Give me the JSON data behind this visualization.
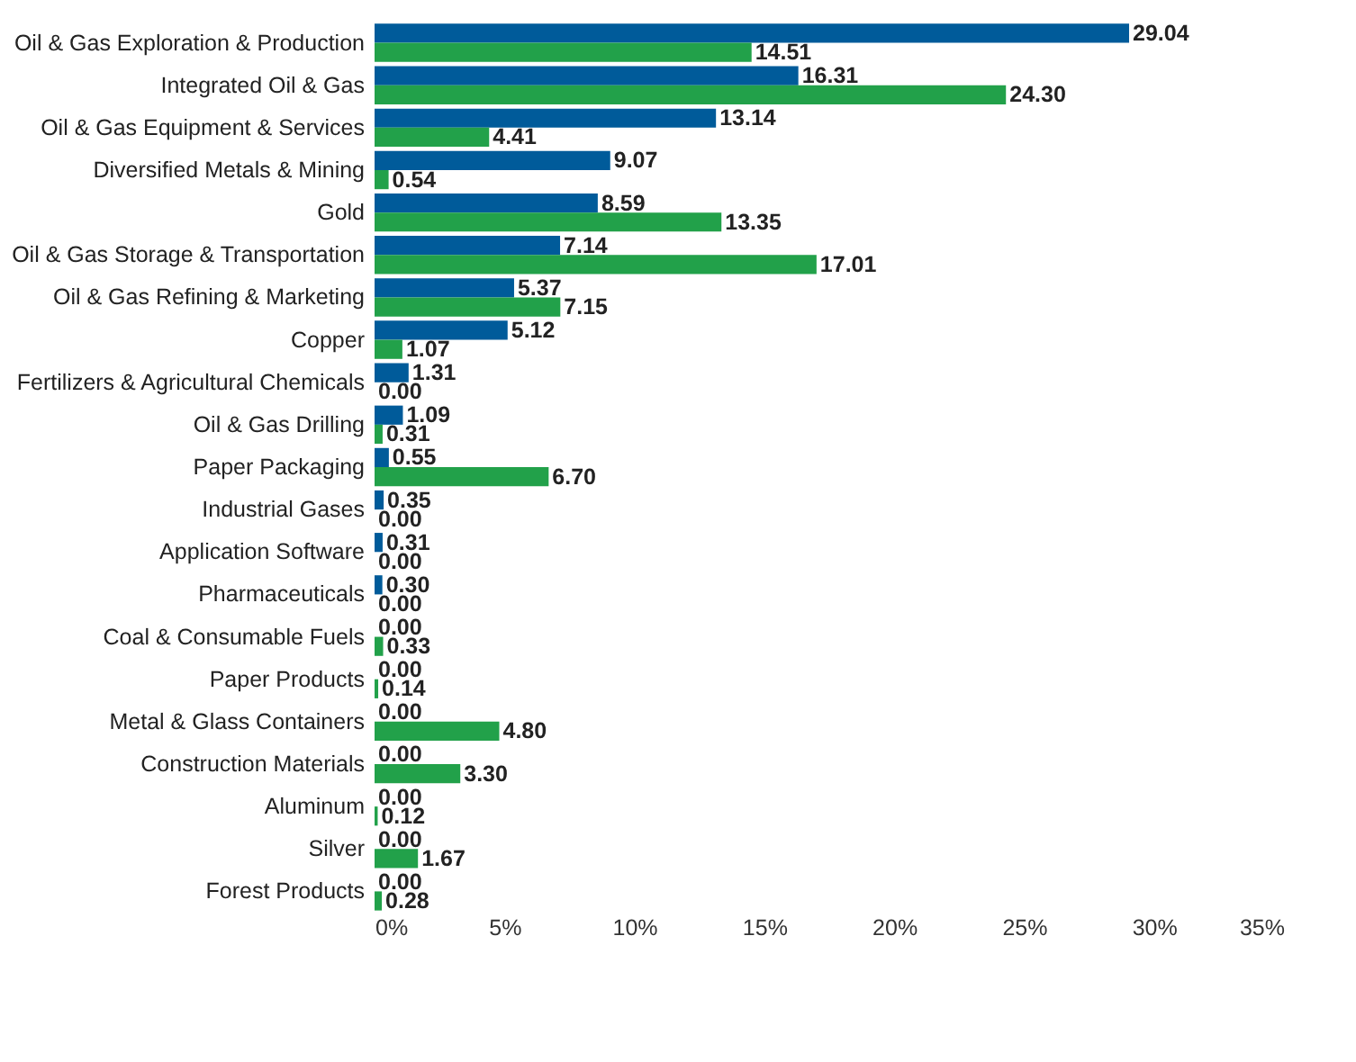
{
  "chart_data": {
    "type": "bar",
    "orientation": "horizontal",
    "categories": [
      "Oil & Gas Exploration & Production",
      "Integrated Oil & Gas",
      "Oil & Gas Equipment & Services",
      "Diversified Metals & Mining",
      "Gold",
      "Oil & Gas Storage & Transportation",
      "Oil & Gas Refining & Marketing",
      "Copper",
      "Fertilizers & Agricultural Chemicals",
      "Oil & Gas Drilling",
      "Paper Packaging",
      "Industrial Gases",
      "Application Software",
      "Pharmaceuticals",
      "Coal & Consumable Fuels",
      "Paper Products",
      "Metal & Glass Containers",
      "Construction Materials",
      "Aluminum",
      "Silver",
      "Forest Products"
    ],
    "series": [
      {
        "color": "#005b9a",
        "values": [
          29.04,
          16.31,
          13.14,
          9.07,
          8.59,
          7.14,
          5.37,
          5.12,
          1.31,
          1.09,
          0.55,
          0.35,
          0.31,
          0.3,
          0,
          0,
          0,
          0,
          0,
          0,
          0
        ],
        "value_labels": [
          "29.04",
          "16.31",
          "13.14",
          "9.07",
          "8.59",
          "7.14",
          "5.37",
          "5.12",
          "1.31",
          "1.09",
          "0.55",
          "0.35",
          "0.31",
          "0.30",
          "0.00",
          "0.00",
          "0.00",
          "0.00",
          "0.00",
          "0.00",
          "0.00"
        ]
      },
      {
        "color": "#22a14a",
        "values": [
          14.51,
          24.3,
          4.41,
          0.54,
          13.35,
          17.01,
          7.15,
          1.07,
          0,
          0.31,
          6.7,
          0,
          0,
          0,
          0.33,
          0.14,
          4.8,
          3.3,
          0.12,
          1.67,
          0.28
        ],
        "value_labels": [
          "14.51",
          "24.30",
          "4.41",
          "0.54",
          "13.35",
          "17.01",
          "7.15",
          "1.07",
          "0.00",
          "0.31",
          "6.70",
          "0.00",
          "0.00",
          "0.00",
          "0.33",
          "0.14",
          "4.80",
          "3.30",
          "0.12",
          "1.67",
          "0.28"
        ]
      }
    ],
    "xlim": [
      0,
      35
    ],
    "xticks": [
      {
        "value": 0,
        "label": "0%"
      },
      {
        "value": 5,
        "label": "5%"
      },
      {
        "value": 10,
        "label": "10%"
      },
      {
        "value": 15,
        "label": "15%"
      },
      {
        "value": 20,
        "label": "20%"
      },
      {
        "value": 25,
        "label": "25%"
      },
      {
        "value": 30,
        "label": "30%"
      },
      {
        "value": 35,
        "label": "35%"
      }
    ],
    "legend": false
  }
}
